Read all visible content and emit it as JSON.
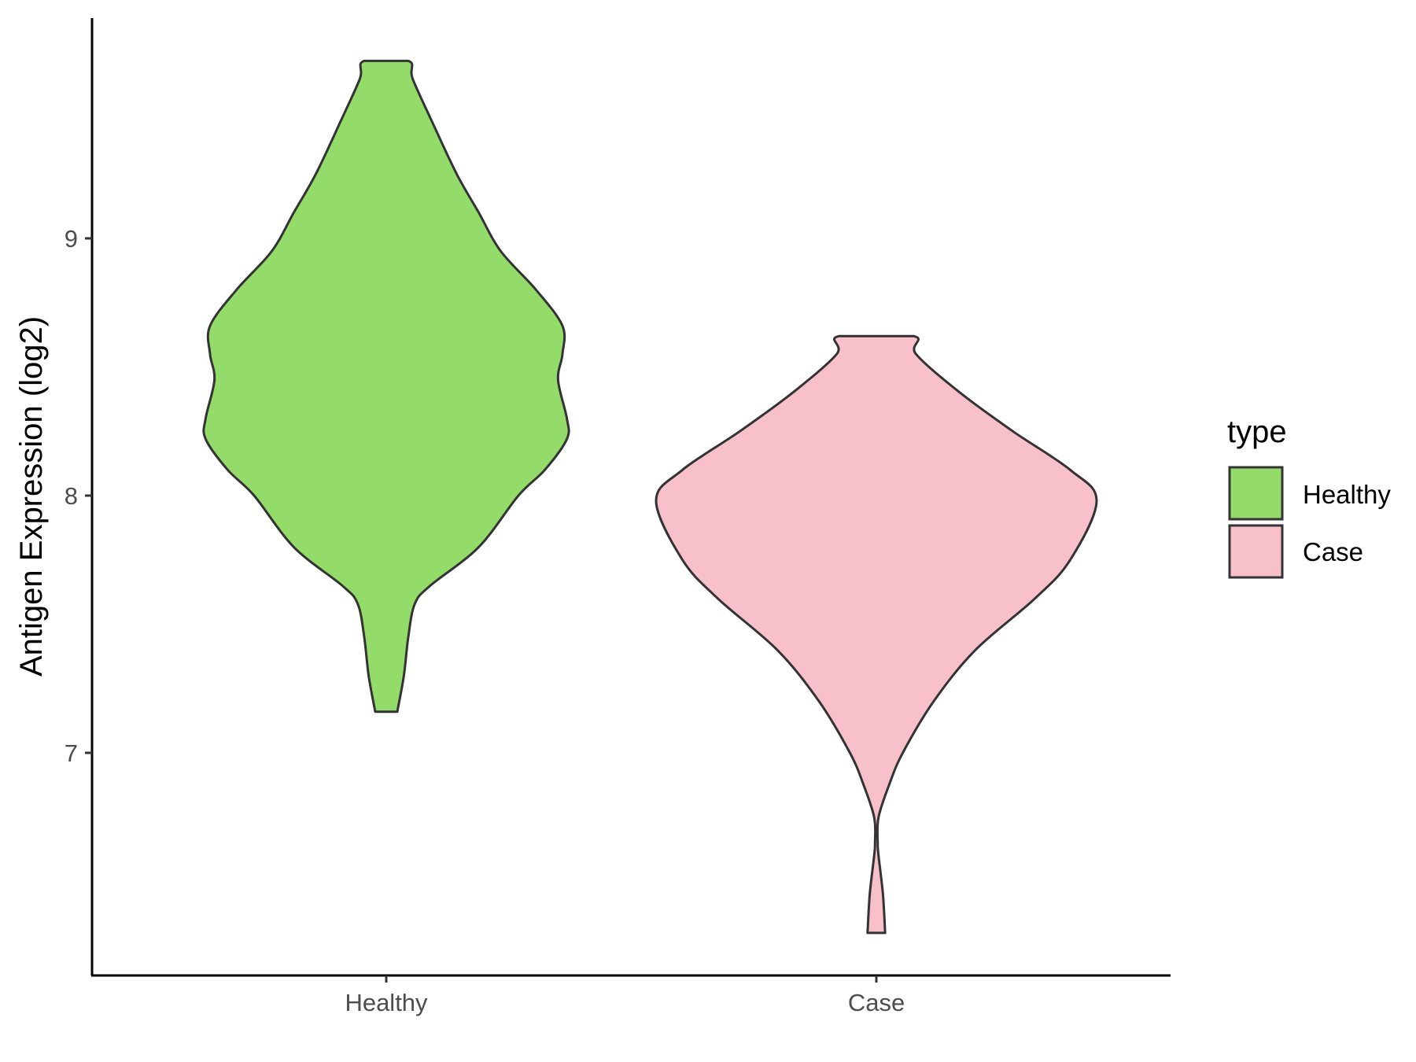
{
  "chart_data": {
    "type": "violin",
    "title": "",
    "xlabel": "",
    "ylabel": "Antigen Expression (log2)",
    "ylim": [
      6.2,
      9.85
    ],
    "yticks": [
      7,
      8,
      9
    ],
    "ytick_labels": [
      "7",
      "8",
      "9"
    ],
    "categories": [
      "Healthy",
      "Case"
    ],
    "grid": false,
    "legend": {
      "title": "type",
      "position": "right",
      "entries": [
        {
          "label": "Healthy",
          "color": "#93dc6a"
        },
        {
          "label": "Case",
          "color": "#f7c0cb"
        }
      ]
    },
    "series": [
      {
        "name": "Healthy",
        "color": "#93dc6a",
        "min": 7.16,
        "max": 9.69,
        "profile": [
          [
            7.16,
            0.05
          ],
          [
            7.3,
            0.08
          ],
          [
            7.45,
            0.1
          ],
          [
            7.58,
            0.13
          ],
          [
            7.65,
            0.2
          ],
          [
            7.8,
            0.42
          ],
          [
            8.0,
            0.6
          ],
          [
            8.1,
            0.72
          ],
          [
            8.22,
            0.82
          ],
          [
            8.3,
            0.82
          ],
          [
            8.45,
            0.78
          ],
          [
            8.55,
            0.8
          ],
          [
            8.66,
            0.8
          ],
          [
            8.8,
            0.68
          ],
          [
            8.95,
            0.52
          ],
          [
            9.1,
            0.42
          ],
          [
            9.25,
            0.32
          ],
          [
            9.45,
            0.21
          ],
          [
            9.62,
            0.12
          ],
          [
            9.69,
            0.1
          ]
        ]
      },
      {
        "name": "Case",
        "color": "#f7c0cb",
        "min": 6.3,
        "max": 8.62,
        "profile": [
          [
            6.3,
            0.04
          ],
          [
            6.45,
            0.03
          ],
          [
            6.6,
            0.01
          ],
          [
            6.65,
            0.006
          ],
          [
            6.75,
            0.01
          ],
          [
            6.88,
            0.06
          ],
          [
            7.0,
            0.12
          ],
          [
            7.2,
            0.26
          ],
          [
            7.4,
            0.45
          ],
          [
            7.6,
            0.72
          ],
          [
            7.75,
            0.88
          ],
          [
            7.98,
            1.0
          ],
          [
            8.1,
            0.88
          ],
          [
            8.25,
            0.62
          ],
          [
            8.4,
            0.38
          ],
          [
            8.55,
            0.18
          ],
          [
            8.62,
            0.17
          ]
        ]
      }
    ]
  }
}
